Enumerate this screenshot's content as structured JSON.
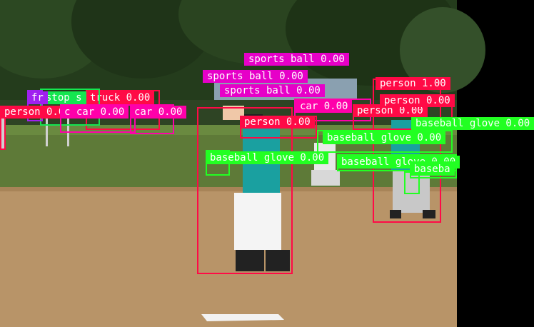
{
  "colors": {
    "person": "#ff0a46",
    "sports_ball": "#e600c8",
    "baseball_glove": "#22ff22",
    "car": "#ff00aa",
    "truck": "#ff0a46",
    "stop_sign": "#14e650",
    "frisbee": "#a020f0",
    "sky": "#d8e4ee",
    "trees": "#243c1c",
    "grass": "#5e7a38",
    "dirt": "#b89468",
    "base": "#f2f2f2"
  },
  "detections": [
    {
      "cls": "sports_ball",
      "text": "sports ball 0.00",
      "box": null
    },
    {
      "cls": "sports_ball",
      "text": "sports ball 0.00",
      "box": null
    },
    {
      "cls": "sports_ball",
      "text": "sports ball 0.00",
      "box": null
    },
    {
      "cls": "person",
      "text": "person 1.00",
      "box": null
    },
    {
      "cls": "truck",
      "text": "truck 0.00",
      "box": null
    },
    {
      "cls": "stop_sign",
      "text": "stop s",
      "box": null
    },
    {
      "cls": "frisbee",
      "text": "fr",
      "box": null
    },
    {
      "cls": "person",
      "text": "person 0.0",
      "box": null
    },
    {
      "cls": "car",
      "text": "c car 0.00",
      "box": null
    },
    {
      "cls": "car",
      "text": "car 0.00",
      "box": null
    },
    {
      "cls": "car",
      "text": "car 0.00",
      "box": null
    },
    {
      "cls": "person",
      "text": "person 0.00",
      "box": null
    },
    {
      "cls": "person",
      "text": "person 0.00",
      "box": null
    },
    {
      "cls": "person",
      "text": "person 0.00",
      "box": null
    },
    {
      "cls": "baseball_glove",
      "text": "baseball glove 0.00",
      "box": null
    },
    {
      "cls": "baseball_glove",
      "text": "baseball glove 0.00",
      "box": null
    },
    {
      "cls": "baseball_glove",
      "text": "baseball glove 0.00",
      "box": null
    },
    {
      "cls": "baseball_glove",
      "text": "baseball glove 0.00",
      "box": null
    },
    {
      "cls": "baseball_glove",
      "text": "baseba",
      "box": null
    }
  ]
}
